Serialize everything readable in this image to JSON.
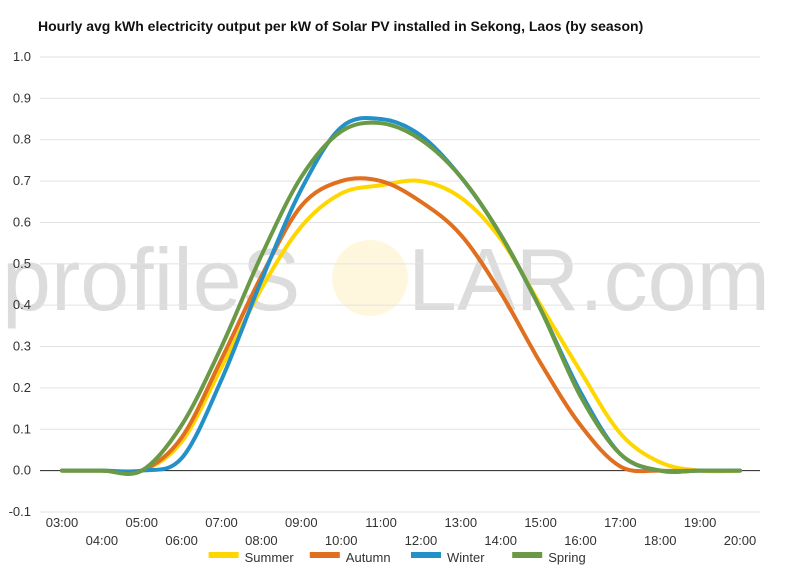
{
  "chart_data": {
    "type": "line",
    "title": "Hourly avg kWh electricity output per kW of Solar PV installed in Sekong, Laos (by season)",
    "xlabel": "",
    "ylabel": "",
    "x": [
      "03:00",
      "04:00",
      "05:00",
      "06:00",
      "07:00",
      "08:00",
      "09:00",
      "10:00",
      "11:00",
      "12:00",
      "13:00",
      "14:00",
      "15:00",
      "16:00",
      "17:00",
      "18:00",
      "19:00",
      "20:00"
    ],
    "ylim": [
      -0.1,
      1.0
    ],
    "yticks": [
      "-0.1",
      "0.0",
      "0.1",
      "0.2",
      "0.3",
      "0.4",
      "0.5",
      "0.6",
      "0.7",
      "0.8",
      "0.9",
      "1.0"
    ],
    "grid": true,
    "legend_position": "bottom",
    "series": [
      {
        "name": "Summer",
        "color": "#ffd700",
        "values": [
          0,
          0,
          0,
          0.07,
          0.25,
          0.44,
          0.59,
          0.67,
          0.69,
          0.7,
          0.66,
          0.56,
          0.4,
          0.24,
          0.09,
          0.02,
          0,
          0
        ]
      },
      {
        "name": "Autumn",
        "color": "#e07020",
        "values": [
          0,
          0,
          0,
          0.08,
          0.27,
          0.47,
          0.64,
          0.7,
          0.7,
          0.65,
          0.57,
          0.43,
          0.26,
          0.11,
          0.01,
          0,
          0,
          0
        ]
      },
      {
        "name": "Winter",
        "color": "#2490c8",
        "values": [
          0,
          0,
          0,
          0.03,
          0.22,
          0.46,
          0.68,
          0.83,
          0.85,
          0.81,
          0.71,
          0.57,
          0.39,
          0.19,
          0.04,
          0,
          0,
          0
        ]
      },
      {
        "name": "Spring",
        "color": "#6a9a46",
        "values": [
          0,
          0,
          0,
          0.11,
          0.3,
          0.52,
          0.71,
          0.82,
          0.84,
          0.8,
          0.71,
          0.57,
          0.39,
          0.18,
          0.04,
          0,
          0,
          0
        ]
      }
    ]
  },
  "watermark": {
    "text_left": "profileS",
    "text_right": "LAR.com",
    "sun_color": "#ffe9b0"
  }
}
